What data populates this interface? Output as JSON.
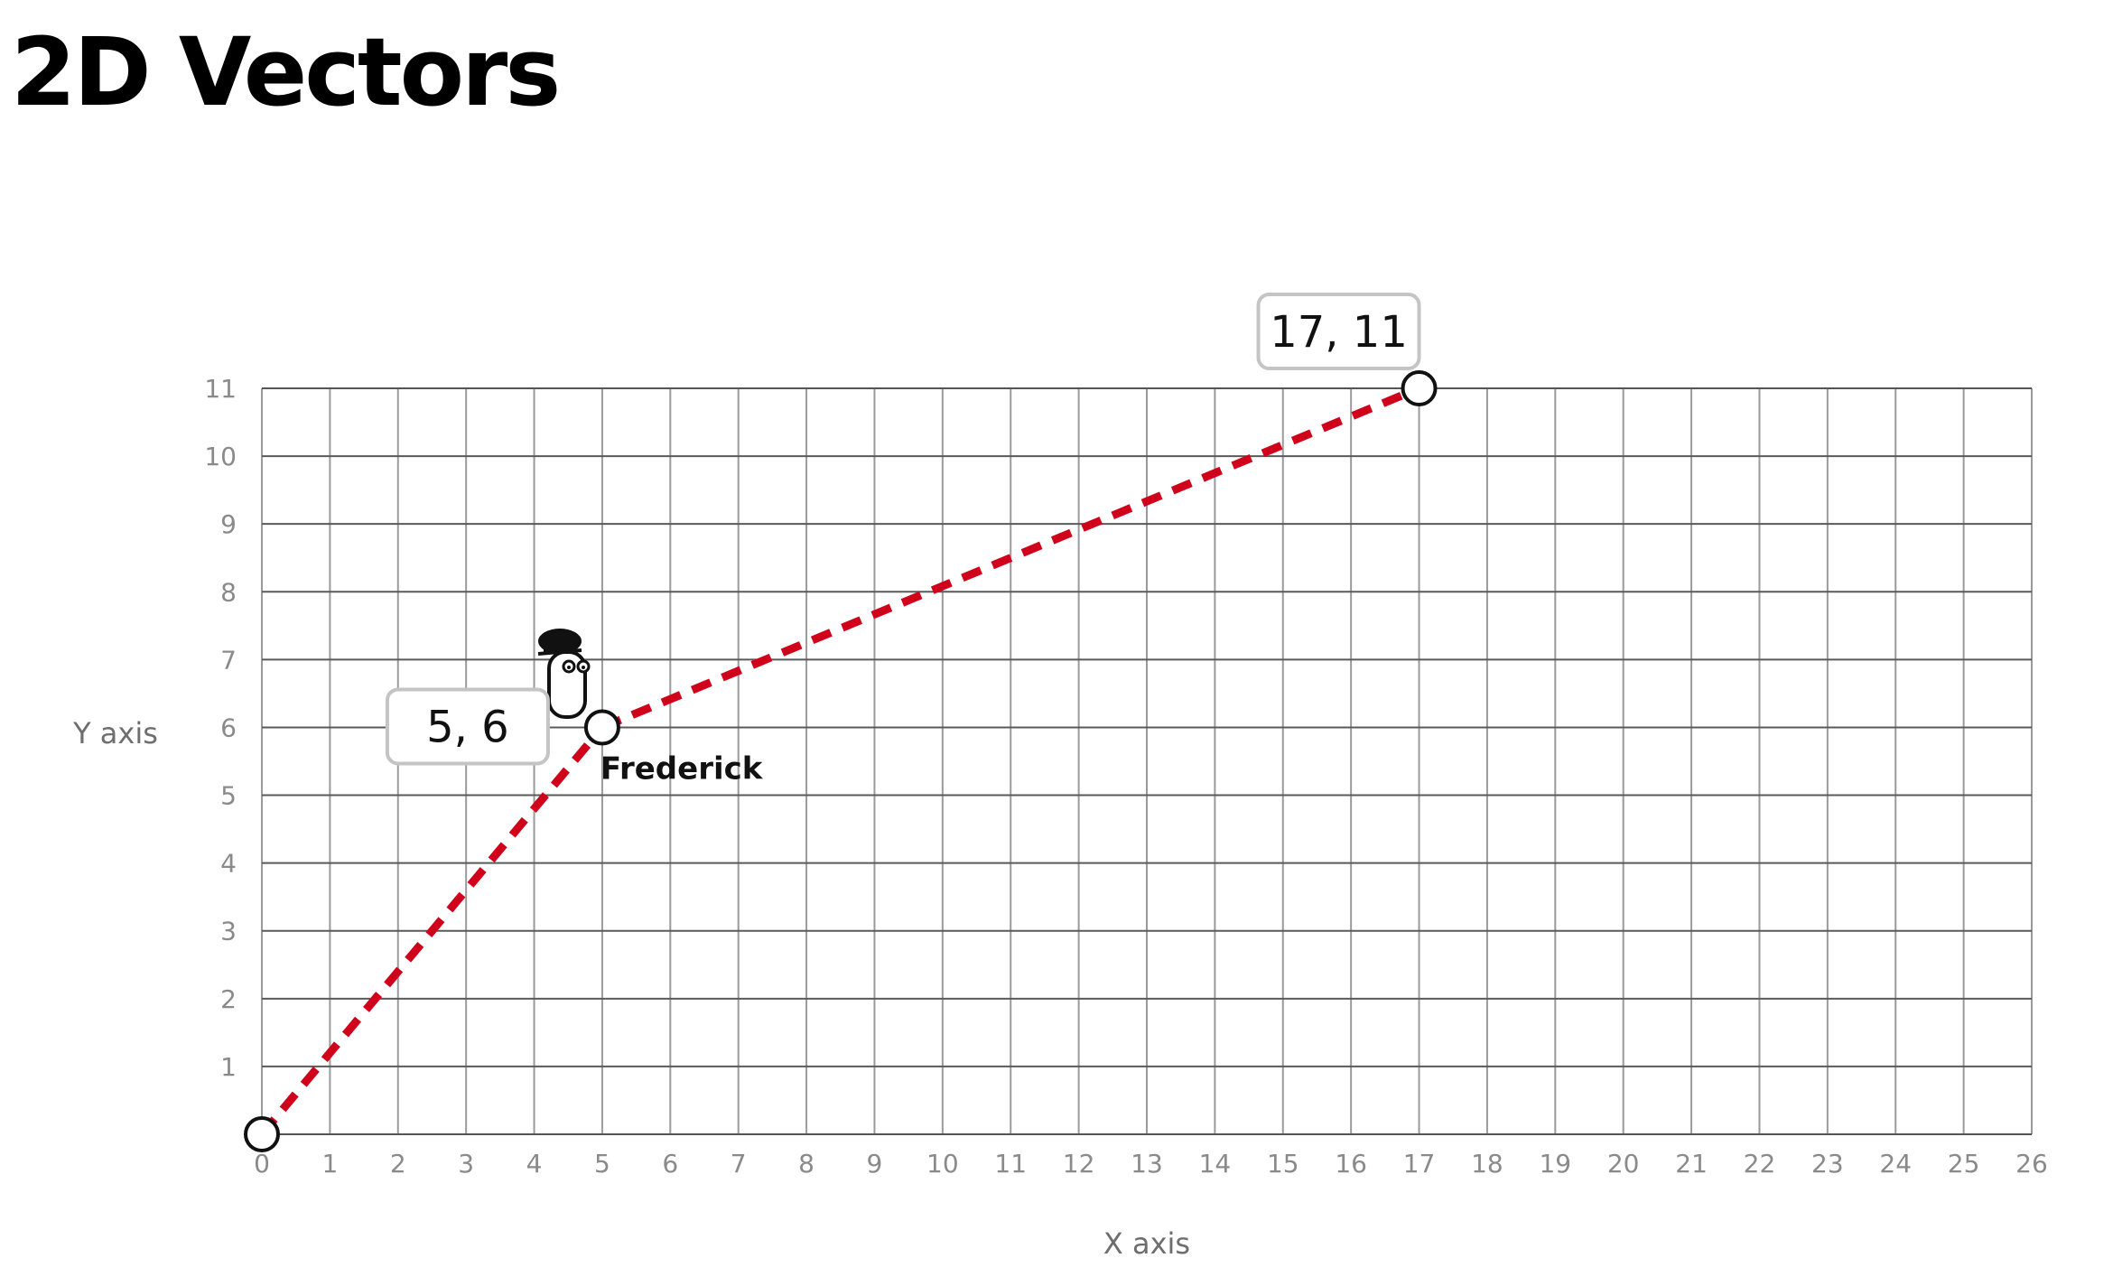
{
  "page": {
    "title": "2D Vectors"
  },
  "chart_data": {
    "type": "line",
    "title": "",
    "xlabel": "X axis",
    "ylabel": "Y axis",
    "xlim": [
      0,
      26
    ],
    "ylim": [
      0,
      11
    ],
    "x_ticks": [
      "0",
      "1",
      "2",
      "3",
      "4",
      "5",
      "6",
      "7",
      "8",
      "9",
      "10",
      "11",
      "12",
      "13",
      "14",
      "15",
      "16",
      "17",
      "18",
      "19",
      "20",
      "21",
      "22",
      "23",
      "24",
      "25",
      "26"
    ],
    "y_ticks": [
      "1",
      "2",
      "3",
      "4",
      "5",
      "6",
      "7",
      "8",
      "9",
      "10",
      "11"
    ],
    "grid": true,
    "series": [
      {
        "color": "#d0021b",
        "style": "dashed",
        "points": [
          {
            "x": 0,
            "y": 0
          },
          {
            "x": 5,
            "y": 6
          },
          {
            "x": 17,
            "y": 11
          }
        ]
      }
    ],
    "annotations": [
      {
        "text": "5, 6",
        "x": 5,
        "y": 6
      },
      {
        "text": "17, 11",
        "x": 17,
        "y": 11
      },
      {
        "text": "Frederick",
        "x": 5,
        "y": 6
      }
    ]
  },
  "character": {
    "icon": "frederick-character-icon",
    "name": "Frederick"
  }
}
